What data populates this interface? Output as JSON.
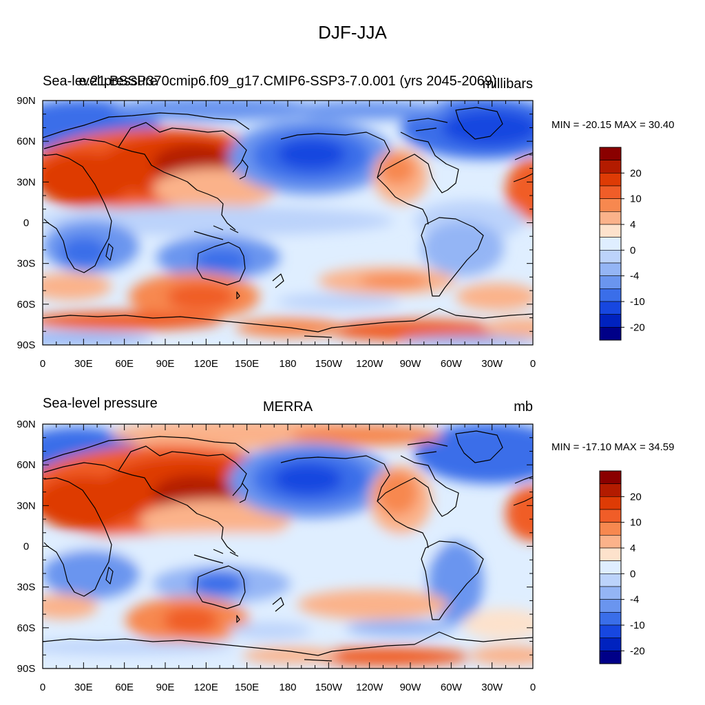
{
  "figure": {
    "title": "DJF-JJA"
  },
  "panels": [
    {
      "left_title": "Sea-level pressure",
      "center_title": "e.21.BSSP370cmip6.f09_g17.CMIP6-SSP3-7.0.001 (yrs 2045-2069)",
      "right_title": "millibars",
      "stats": "MIN = -20.15 MAX =  30.40"
    },
    {
      "left_title": "Sea-level pressure",
      "center_title": "MERRA",
      "right_title": "mb",
      "stats": "MIN = -17.10 MAX =  34.59"
    }
  ],
  "axes": {
    "lat_ticks": [
      "90N",
      "60N",
      "30N",
      "0",
      "30S",
      "60S",
      "90S"
    ],
    "lon_ticks": [
      "0",
      "30E",
      "60E",
      "90E",
      "120E",
      "150E",
      "180",
      "150W",
      "120W",
      "90W",
      "60W",
      "30W",
      "0"
    ]
  },
  "colorbar": {
    "labels": [
      "20",
      "10",
      "4",
      "0",
      "-4",
      "-10",
      "-20"
    ],
    "colors": [
      "#8a0000",
      "#b31b00",
      "#de3b05",
      "#f05d28",
      "#f7884f",
      "#fbb28a",
      "#fde2cc",
      "#dfeeff",
      "#bcd3fb",
      "#94b5f5",
      "#6a95ef",
      "#3a6ee9",
      "#1747e0",
      "#0022bf",
      "#000088"
    ]
  },
  "chart_data": [
    {
      "type": "heatmap",
      "title": "DJF-JJA",
      "left_title": "Sea-level pressure",
      "center_title": "e.21.BSSP370cmip6.f09_g17.CMIP6-SSP3-7.0.001 (yrs 2045-2069)",
      "units": "millibars",
      "min": -20.15,
      "max": 30.4,
      "contour_levels": [
        -20,
        -15,
        -10,
        -8,
        -4,
        -2,
        0,
        2,
        4,
        8,
        10,
        15,
        20
      ],
      "x_range": [
        "0",
        "0"
      ],
      "y_range": [
        "90S",
        "90N"
      ]
    },
    {
      "type": "heatmap",
      "title": "DJF-JJA",
      "left_title": "Sea-level pressure",
      "center_title": "MERRA",
      "units": "mb",
      "min": -17.1,
      "max": 34.59,
      "contour_levels": [
        -20,
        -15,
        -10,
        -8,
        -4,
        -2,
        0,
        2,
        4,
        8,
        10,
        15,
        20
      ],
      "x_range": [
        "0",
        "0"
      ],
      "y_range": [
        "90S",
        "90N"
      ]
    }
  ]
}
